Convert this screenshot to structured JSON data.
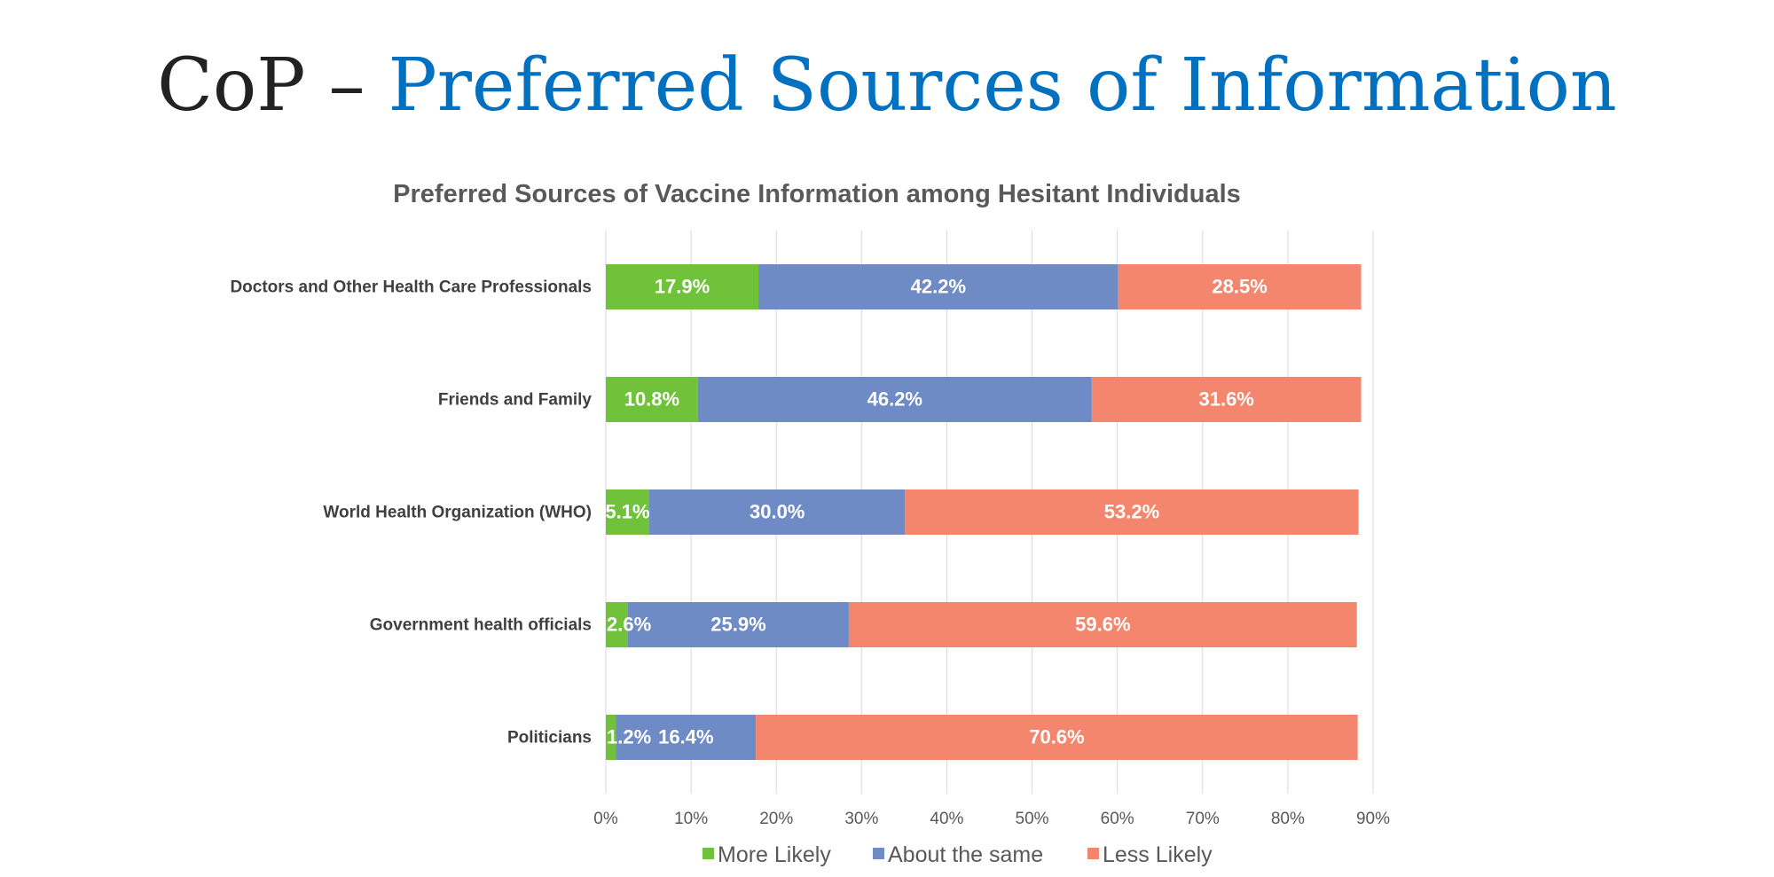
{
  "slide": {
    "title_prefix": "CoP – ",
    "title_accent": "Preferred Sources of Information"
  },
  "chart_data": {
    "type": "bar",
    "orientation": "horizontal",
    "stacked": true,
    "title": "Preferred Sources of Vaccine Information among Hesitant Individuals",
    "categories": [
      "Doctors and Other Health Care Professionals",
      "Friends and Family",
      "World Health Organization (WHO)",
      "Government health officials",
      "Politicians"
    ],
    "series": [
      {
        "name": "More Likely",
        "color": "#70C23A",
        "values": [
          17.9,
          10.8,
          5.1,
          2.6,
          1.2
        ],
        "labels": [
          "17.9%",
          "10.8%",
          "5.1%",
          "2.6%",
          "1.2%"
        ]
      },
      {
        "name": "About the same",
        "color": "#6E8BC6",
        "values": [
          42.2,
          46.2,
          30.0,
          25.9,
          16.4
        ],
        "labels": [
          "42.2%",
          "46.2%",
          "30.0%",
          "25.9%",
          "16.4%"
        ]
      },
      {
        "name": "Less Likely",
        "color": "#F4866E",
        "values": [
          28.5,
          31.6,
          53.2,
          59.6,
          70.6
        ],
        "labels": [
          "28.5%",
          "31.6%",
          "53.2%",
          "59.6%",
          "70.6%"
        ]
      }
    ],
    "xlim": [
      0,
      90
    ],
    "xticks": [
      "0%",
      "10%",
      "20%",
      "30%",
      "40%",
      "50%",
      "60%",
      "70%",
      "80%",
      "90%"
    ],
    "grid": true,
    "legend": "bottom"
  }
}
